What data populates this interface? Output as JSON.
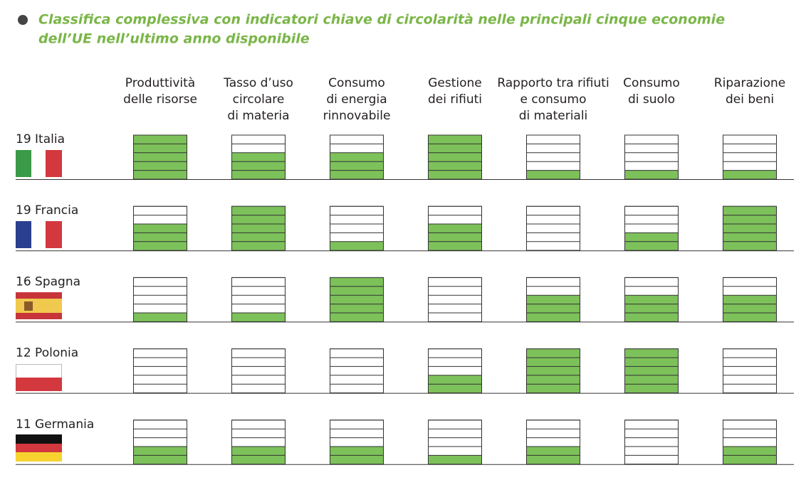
{
  "chart_data": {
    "type": "segmented-score",
    "title": [
      "Classifica complessiva con indicatori chiave di circolarità nelle principali cinque economie",
      "dell’UE nell’ultimo anno disponibile"
    ],
    "categories": [
      [
        "Produttività",
        "delle risorse"
      ],
      [
        "Tasso d’uso",
        "circolare",
        "di materia"
      ],
      [
        "Consumo",
        "di energia",
        "rinnovabile"
      ],
      [
        "Gestione",
        "dei rifiuti"
      ],
      [
        "Rapporto tra rifiuti",
        "e consumo",
        "di materiali"
      ],
      [
        "Consumo",
        "di suolo"
      ],
      [
        "Riparazione",
        "dei beni"
      ]
    ],
    "color": "#7dc15a",
    "ylim": [
      0,
      5
    ],
    "series": [
      {
        "score": 19,
        "name": "Italia",
        "values": [
          5,
          3,
          3,
          5,
          1,
          1,
          1
        ]
      },
      {
        "score": 19,
        "name": "Francia",
        "values": [
          3,
          5,
          1,
          3,
          0,
          2,
          5
        ]
      },
      {
        "score": 16,
        "name": "Spagna",
        "values": [
          1,
          1,
          5,
          0,
          3,
          3,
          3
        ]
      },
      {
        "score": 12,
        "name": "Polonia",
        "values": [
          0,
          0,
          0,
          2,
          5,
          5,
          0
        ]
      },
      {
        "score": 11,
        "name": "Germania",
        "values": [
          2,
          2,
          2,
          1,
          2,
          0,
          2
        ]
      }
    ]
  }
}
